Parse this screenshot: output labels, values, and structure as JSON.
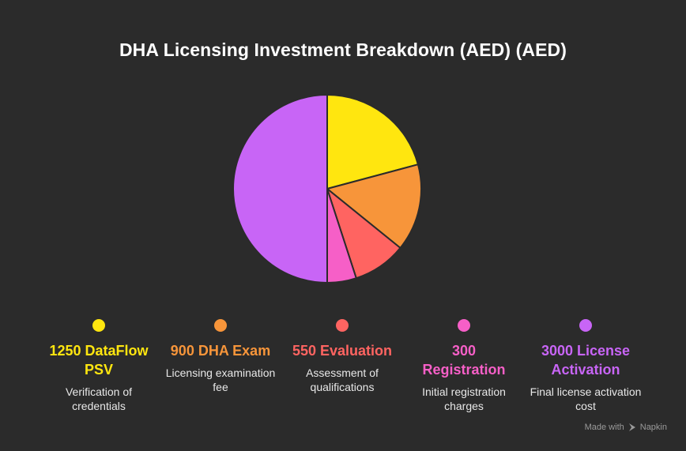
{
  "title": "DHA Licensing Investment Breakdown (AED) (AED)",
  "chart_data": {
    "type": "pie",
    "title": "DHA Licensing Investment Breakdown (AED) (AED)",
    "slices": [
      {
        "label": "1250 DataFlow PSV",
        "value": 1250,
        "description": "Verification of credentials",
        "color": "#ffe60f"
      },
      {
        "label": "900 DHA Exam",
        "value": 900,
        "description": "Licensing examination fee",
        "color": "#f7953a"
      },
      {
        "label": "550 Evaluation",
        "value": 550,
        "description": "Assessment of qualifications",
        "color": "#ff6461"
      },
      {
        "label": "300 Registration",
        "value": 300,
        "description": "Initial registration charges",
        "color": "#f65fc7"
      },
      {
        "label": "3000 License Activation",
        "value": 3000,
        "description": "Final license activation cost",
        "color": "#c865f6"
      }
    ],
    "legend_position": "bottom"
  },
  "watermark": {
    "prefix": "Made with",
    "brand": "Napkin",
    "icon": "napkin-logo-icon"
  }
}
